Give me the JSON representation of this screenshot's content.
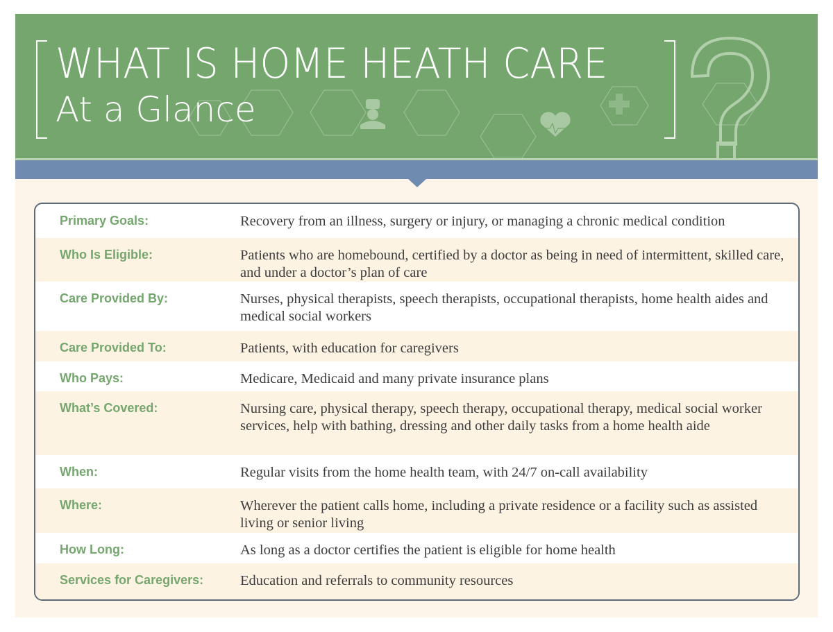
{
  "header": {
    "title": "WHAT IS HOME HEATH CARE",
    "subtitle": "At a Glance",
    "colors": {
      "green": "#74a66e",
      "blue": "#6f8bb0",
      "cream": "#fdf5ea"
    },
    "icons": [
      "nurse-icon",
      "heart-pulse-icon",
      "medical-cross-icon",
      "question-mark-icon",
      "hexagon-network-pattern"
    ]
  },
  "rows": [
    {
      "label": "Primary Goals:",
      "text": "Recovery from an illness, surgery or injury, or managing a chronic medical condition"
    },
    {
      "label": "Who Is Eligible:",
      "text": "Patients who are homebound, certified by a doctor as being in need of intermittent, skilled care, and under a doctor’s plan of care"
    },
    {
      "label": "Care Provided By:",
      "text": "Nurses, physical therapists, speech therapists, occupational therapists, home health aides and medical social workers"
    },
    {
      "label": "Care Provided To:",
      "text": "Patients, with education for caregivers"
    },
    {
      "label": "Who Pays:",
      "text": "Medicare, Medicaid and many private insurance plans"
    },
    {
      "label": "What’s Covered:",
      "text": "Nursing care, physical therapy, speech therapy, occupational therapy, medical social worker services, help with bathing, dressing and other daily tasks from a home health aide"
    },
    {
      "label": "When:",
      "text": "Regular visits from the home health team, with 24/7 on-call availability"
    },
    {
      "label": "Where:",
      "text": "Wherever the patient calls home, including a private residence or a facility such as assisted living or senior living"
    },
    {
      "label": "How Long:",
      "text": "As long as a doctor certifies the patient is eligible for home health"
    },
    {
      "label": "Services for Caregivers:",
      "text": "Education and referrals to community resources"
    }
  ]
}
